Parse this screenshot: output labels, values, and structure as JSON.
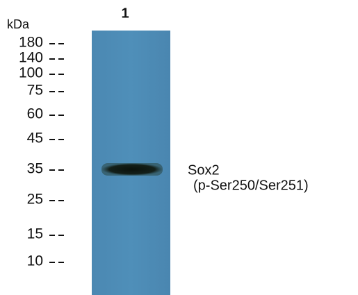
{
  "lane_label": "1",
  "unit": "kDa",
  "markers": [
    "180",
    "140",
    "100",
    "75",
    "60",
    "45",
    "35",
    "25",
    "15",
    "10"
  ],
  "band_label": {
    "name": "Sox2",
    "detail": "(p-Ser250/Ser251)"
  }
}
